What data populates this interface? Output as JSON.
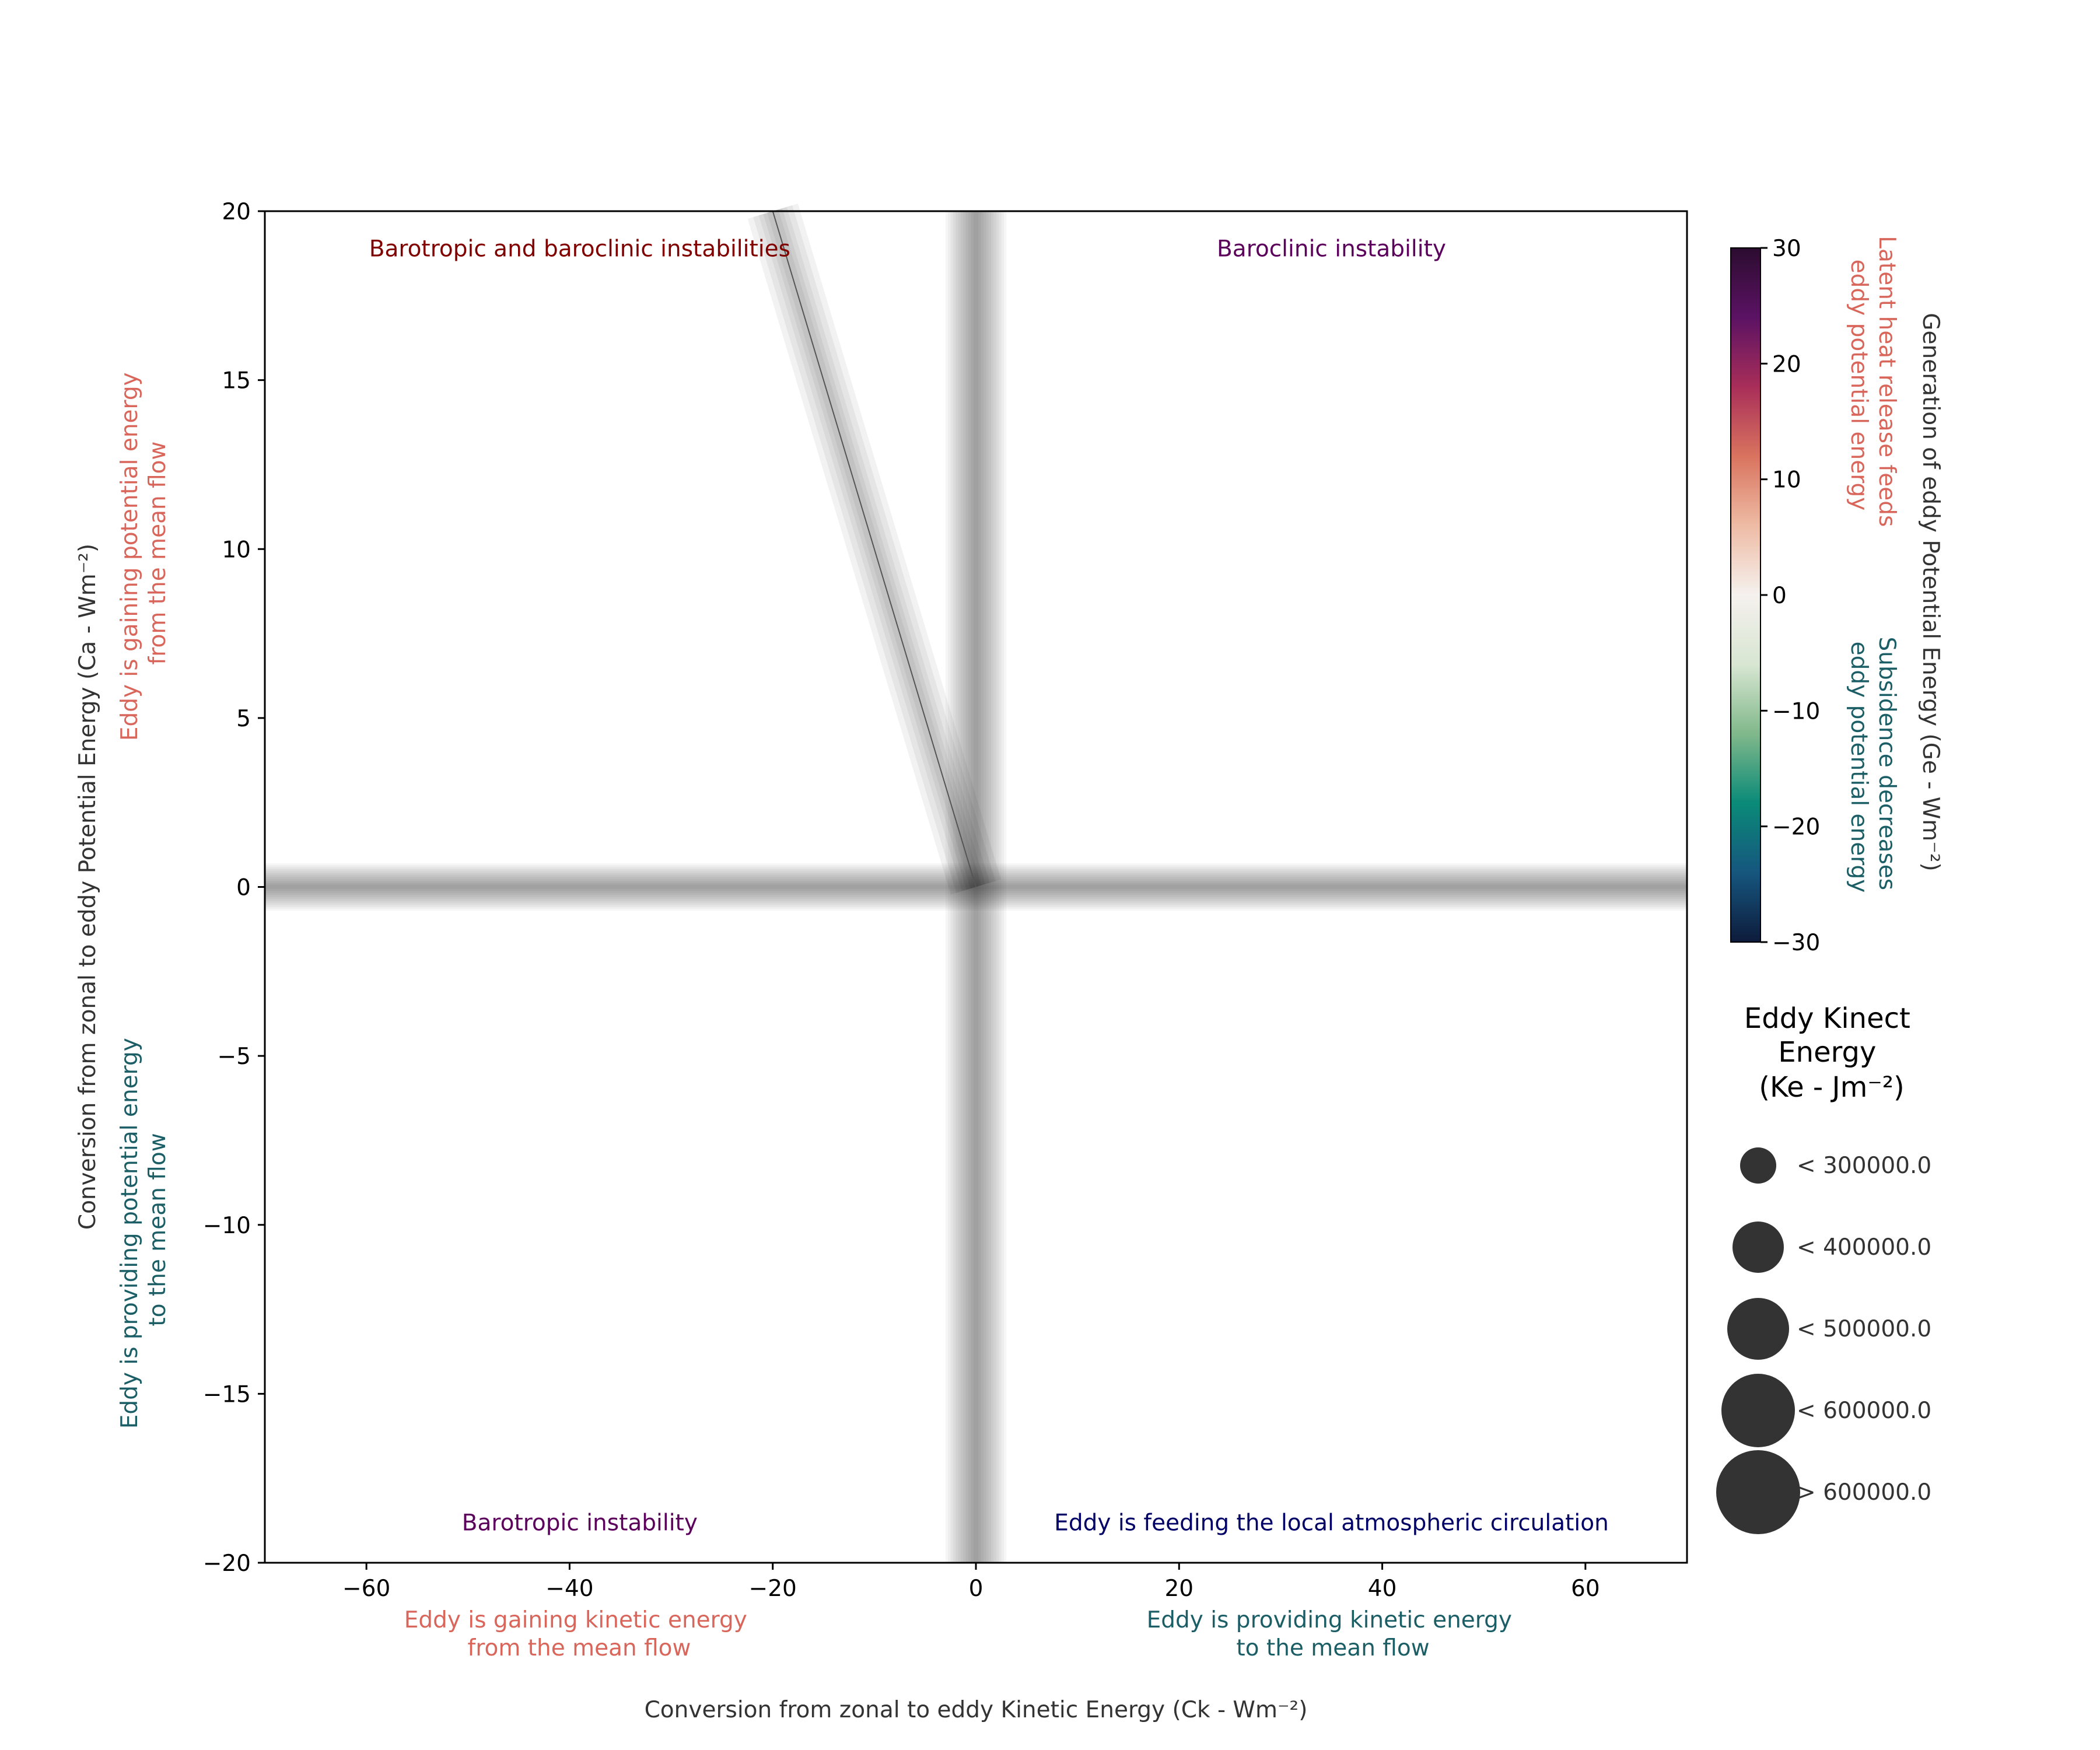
{
  "chart_data": {
    "type": "scatter",
    "x_axis": {
      "label": "Conversion from zonal to eddy Kinetic Energy (Ck - Wm⁻²)",
      "xlim": [
        -70,
        70
      ],
      "ticks": [
        -60,
        -40,
        -20,
        0,
        20,
        40,
        60
      ],
      "tick_labels": [
        "−60",
        "−40",
        "−20",
        "0",
        "20",
        "40",
        "60"
      ],
      "negative_side_note": [
        "Eddy is gaining kinetic energy",
        "from the mean flow"
      ],
      "positive_side_note": [
        "Eddy is providing kinetic energy",
        "to the mean flow"
      ]
    },
    "y_axis": {
      "label": "Conversion from zonal to eddy Potential Energy (Ca - Wm⁻²)",
      "ylim": [
        -20,
        20
      ],
      "ticks": [
        -20,
        -15,
        -10,
        -5,
        0,
        5,
        10,
        15,
        20
      ],
      "tick_labels": [
        "−20",
        "−15",
        "−10",
        "−5",
        "0",
        "5",
        "10",
        "15",
        "20"
      ],
      "positive_side_note": [
        "Eddy is gaining potential energy",
        "from the mean flow"
      ],
      "negative_side_note": [
        "Eddy is providing potential energy",
        "to the mean flow"
      ]
    },
    "quadrant_labels": [
      {
        "text": "Barotropic and baroclinic instabilities",
        "x": -39,
        "y": 18.9,
        "color": "#800000"
      },
      {
        "text": "Baroclinic instability",
        "x": 35,
        "y": 18.9,
        "color": "#5b005b"
      },
      {
        "text": "Barotropic instability",
        "x": -39,
        "y": -18.8,
        "color": "#5b005b"
      },
      {
        "text": "Eddy is feeding the local atmospheric circulation",
        "x": 35,
        "y": -18.8,
        "color": "#000066"
      }
    ],
    "shaded_bands": [
      {
        "orientation": "horizontal",
        "value": 0,
        "half_width": 0.7
      },
      {
        "orientation": "vertical",
        "value": 0,
        "half_width": 3
      }
    ],
    "trend_line": {
      "x": [
        -20,
        0
      ],
      "y": [
        20,
        0
      ]
    },
    "colorbar": {
      "label": "Generation of eddy Potential Energy (Ge - Wm⁻²)",
      "range": [
        -30,
        30
      ],
      "ticks": [
        -30,
        -20,
        -10,
        0,
        10,
        20,
        30
      ],
      "tick_labels": [
        "−30",
        "−20",
        "−10",
        "0",
        "10",
        "20",
        "30"
      ],
      "stops": [
        "#0d1b3b",
        "#16567e",
        "#0a8a78",
        "#80b88a",
        "#d8e6d2",
        "#f5f1ee",
        "#eebba4",
        "#d9735e",
        "#a82e59",
        "#5b1263",
        "#2b0c2f"
      ],
      "positive_note": [
        "Latent heat release feeds",
        "eddy potential energy"
      ],
      "negative_note": [
        "Subsidence decreases",
        "eddy potential energy"
      ],
      "positive_note_color": "#d9665b",
      "negative_note_color": "#1b5e66"
    },
    "size_legend": {
      "title": [
        "Eddy Kinect",
        "Energy",
        "(Ke - Jm⁻²)"
      ],
      "entries": [
        "< 300000.0",
        "< 400000.0",
        "< 500000.0",
        "< 600000.0",
        "> 600000.0"
      ],
      "marker_color": "#333333"
    },
    "colors": {
      "positive_note": "#d9665b",
      "negative_note": "#1b5e66",
      "band": "#000000"
    }
  }
}
